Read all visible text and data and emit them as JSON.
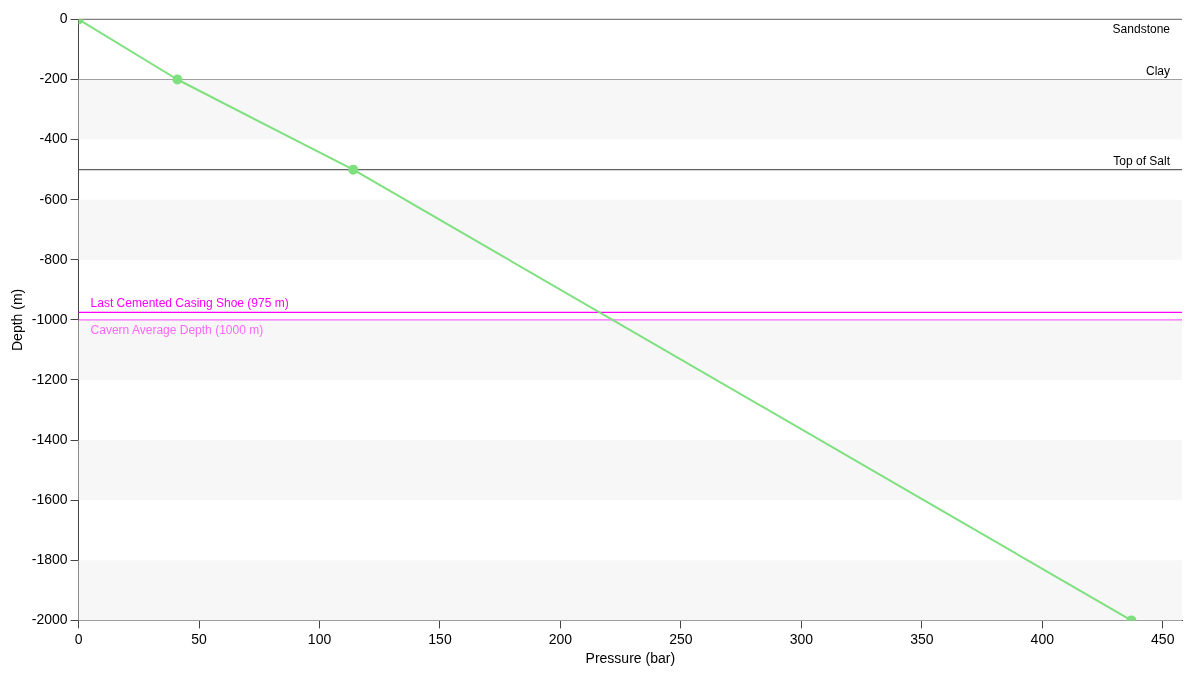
{
  "chart_data": {
    "type": "line",
    "xlabel": "Pressure (bar)",
    "ylabel": "Depth (m)",
    "x": [
      0,
      41,
      114,
      437
    ],
    "series": [
      {
        "color": "#7ee07e",
        "values": [
          0,
          -200,
          -500,
          -2000
        ]
      }
    ],
    "xlim": [
      0,
      458
    ],
    "xticks": [
      0,
      50,
      100,
      150,
      200,
      250,
      300,
      350,
      400,
      450
    ],
    "ylim": [
      -2000,
      0
    ],
    "yticks": [
      -2000,
      -1800,
      -1600,
      -1400,
      -1200,
      -1000,
      -800,
      -600,
      -400,
      -200,
      0
    ],
    "marker": "circle",
    "grid": false,
    "legend": false,
    "ref_lines": [
      {
        "axis": "y",
        "value": 0,
        "label": "Sandstone",
        "color": "#808080"
      },
      {
        "axis": "y",
        "value": -200,
        "label": "Clay",
        "color": "#a0a0a0"
      },
      {
        "axis": "y",
        "value": -500,
        "label": "Top of Salt",
        "color": "#606060"
      },
      {
        "axis": "y",
        "value": -975,
        "label": "Last Cemented Casing Shoe (975 m)",
        "color": "#ff00ff"
      },
      {
        "axis": "y",
        "value": -1000,
        "label": "Cavern Average Depth (1000 m)",
        "color": "#ff66ff"
      }
    ],
    "bands": [
      {
        "axis": "y",
        "from": -400,
        "to": -200,
        "color": "#f7f7f7"
      },
      {
        "axis": "y",
        "from": -800,
        "to": -600,
        "color": "#f7f7f7"
      },
      {
        "axis": "y",
        "from": -1200,
        "to": -1000,
        "color": "#f7f7f7"
      },
      {
        "axis": "y",
        "from": -1600,
        "to": -1400,
        "color": "#f7f7f7"
      },
      {
        "axis": "y",
        "from": -2000,
        "to": -1800,
        "color": "#f7f7f7"
      }
    ]
  }
}
